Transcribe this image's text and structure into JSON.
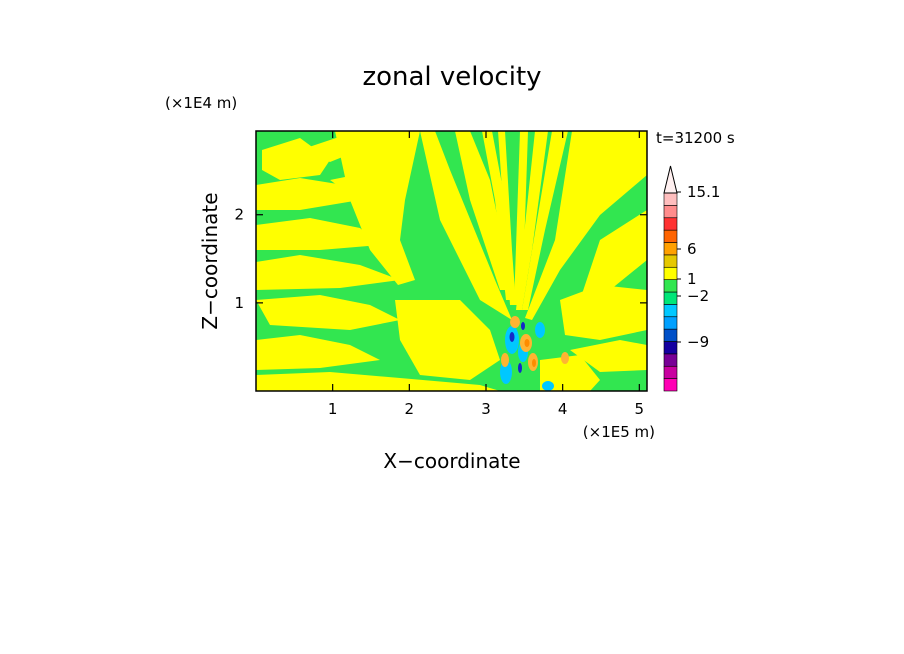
{
  "chart_data": {
    "type": "heatmap",
    "title": "zonal velocity",
    "xlabel": "X−coordinate",
    "ylabel": "Z−coordinate",
    "x_unit": "(×1E5 m)",
    "y_unit": "(×1E4 m)",
    "time_label": "t=31200 s",
    "xlim": [
      0,
      5.1
    ],
    "ylim": [
      0,
      2.95
    ],
    "x_ticks": [
      1,
      2,
      3,
      4,
      5
    ],
    "y_ticks": [
      1,
      2
    ],
    "colorbar": {
      "ticks": [
        {
          "value": 15.1,
          "label": "15.1"
        },
        {
          "value": 6,
          "label": "6"
        },
        {
          "value": 1,
          "label": "1"
        },
        {
          "value": -2,
          "label": "−2"
        },
        {
          "value": -9,
          "label": "−9"
        }
      ],
      "bands": [
        {
          "color": "#ff00b4"
        },
        {
          "color": "#c800a0"
        },
        {
          "color": "#780096"
        },
        {
          "color": "#1400a0"
        },
        {
          "color": "#0050c8"
        },
        {
          "color": "#00a0ff"
        },
        {
          "color": "#00c8ff"
        },
        {
          "color": "#00e678"
        },
        {
          "color": "#32e650"
        },
        {
          "color": "#ffff00"
        },
        {
          "color": "#e6c800"
        },
        {
          "color": "#ffa000"
        },
        {
          "color": "#ff6400"
        },
        {
          "color": "#ff3232"
        },
        {
          "color": "#ff8c8c"
        },
        {
          "color": "#ffbebe"
        }
      ],
      "overflow_color": "#fff0f0"
    },
    "field_colors": {
      "positive_small": "#ffff00",
      "negative_small": "#32e650",
      "moderate_negative": "#00c8ff",
      "strong_negative": "#1428c8",
      "moderate_positive": "#ffb432",
      "strong_positive": "#ff8c00"
    }
  }
}
